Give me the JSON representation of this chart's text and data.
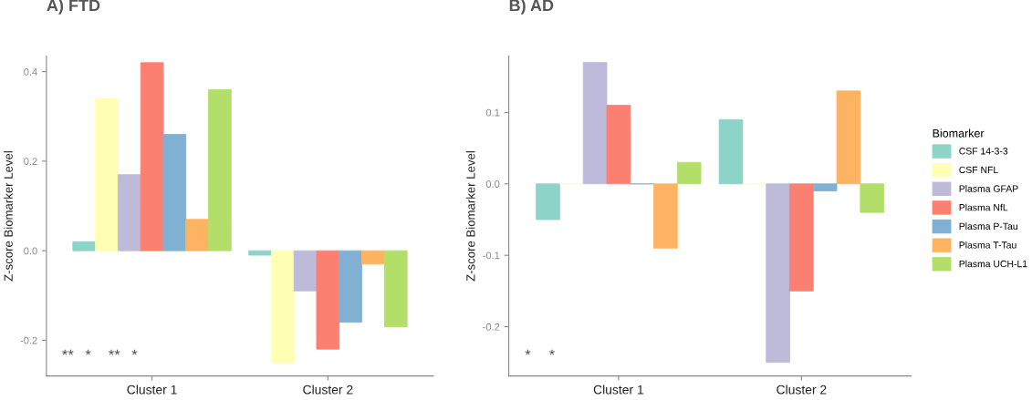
{
  "chart_data": [
    {
      "type": "bar",
      "title": "A) FTD",
      "ylabel": "Z-score Biomarker Level",
      "categories": [
        "Cluster 1",
        "Cluster 2"
      ],
      "series": [
        {
          "name": "CSF 14-3-3",
          "color": "#8dd3c7",
          "values": [
            0.02,
            -0.01
          ]
        },
        {
          "name": "CSF NFL",
          "color": "#ffffb3",
          "values": [
            0.34,
            -0.25
          ]
        },
        {
          "name": "Plasma GFAP",
          "color": "#bebada",
          "values": [
            0.17,
            -0.09
          ]
        },
        {
          "name": "Plasma NfL",
          "color": "#fb8072",
          "values": [
            0.42,
            -0.22
          ]
        },
        {
          "name": "Plasma P-Tau",
          "color": "#80b1d3",
          "values": [
            0.26,
            -0.16
          ]
        },
        {
          "name": "Plasma T-Tau",
          "color": "#fdb462",
          "values": [
            0.07,
            -0.03
          ]
        },
        {
          "name": "Plasma UCH-L1",
          "color": "#b3de69",
          "values": [
            0.36,
            -0.17
          ]
        }
      ],
      "ylim": [
        -0.28,
        0.435
      ],
      "yticks": [
        {
          "value": -0.2,
          "label": "-0.2"
        },
        {
          "value": 0.0,
          "label": "0.0"
        },
        0.2,
        0.4
      ],
      "annotations": [
        "**",
        "*",
        "**",
        "*"
      ],
      "grid": false,
      "legend": "right",
      "legend_title": "Biomarker"
    },
    {
      "type": "bar",
      "title": "B) AD",
      "ylabel": "Z-score Biomarker Level",
      "categories": [
        "Cluster 1",
        "Cluster 2"
      ],
      "series": [
        {
          "name": "CSF 14-3-3",
          "color": "#8dd3c7",
          "values": [
            -0.05,
            0.09
          ]
        },
        {
          "name": "CSF NFL",
          "color": "#ffffb3",
          "values": [
            0.0,
            0.0
          ]
        },
        {
          "name": "Plasma GFAP",
          "color": "#bebada",
          "values": [
            0.17,
            -0.25
          ]
        },
        {
          "name": "Plasma NfL",
          "color": "#fb8072",
          "values": [
            0.11,
            -0.15
          ]
        },
        {
          "name": "Plasma P-Tau",
          "color": "#80b1d3",
          "values": [
            0.0,
            -0.01
          ]
        },
        {
          "name": "Plasma T-Tau",
          "color": "#fdb462",
          "values": [
            -0.09,
            0.13
          ]
        },
        {
          "name": "Plasma UCH-L1",
          "color": "#b3de69",
          "values": [
            0.03,
            -0.04
          ]
        }
      ],
      "ylim": [
        -0.269,
        0.179
      ],
      "yticks": [
        {
          "value": -0.2,
          "label": "-0.2"
        },
        {
          "value": -0.1,
          "label": "-0.1"
        },
        {
          "value": 0.0,
          "label": "0.0"
        },
        0.1
      ],
      "annotations": [
        "*",
        "*"
      ],
      "grid": false,
      "legend": "right"
    }
  ]
}
